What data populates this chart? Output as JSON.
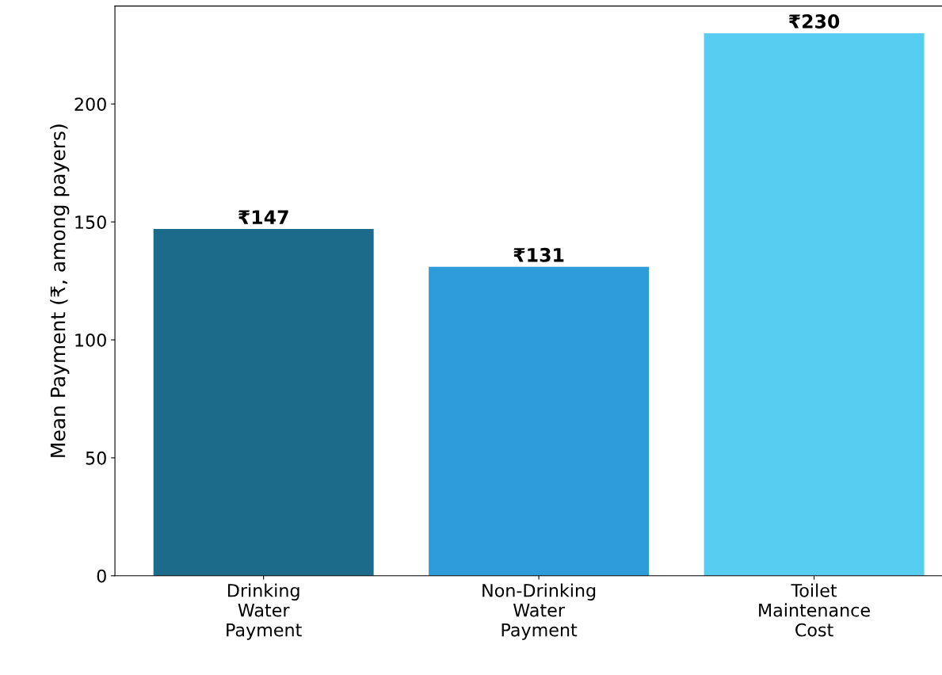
{
  "chart_data": {
    "type": "bar",
    "ylabel": "Mean Payment (₹, among payers)",
    "categories": [
      "Drinking\nWater\nPayment",
      "Non-Drinking\nWater\nPayment",
      "Toilet\nMaintenance\nCost"
    ],
    "values": [
      147,
      131,
      230
    ],
    "colors": [
      "#1c6b8a",
      "#2e9cdb",
      "#57cdf2"
    ],
    "value_labels": [
      "₹147",
      "₹131",
      "₹230"
    ],
    "ylim": [
      0,
      241.5
    ],
    "yticks": [
      0,
      50,
      100,
      150,
      200
    ],
    "grid": false
  }
}
